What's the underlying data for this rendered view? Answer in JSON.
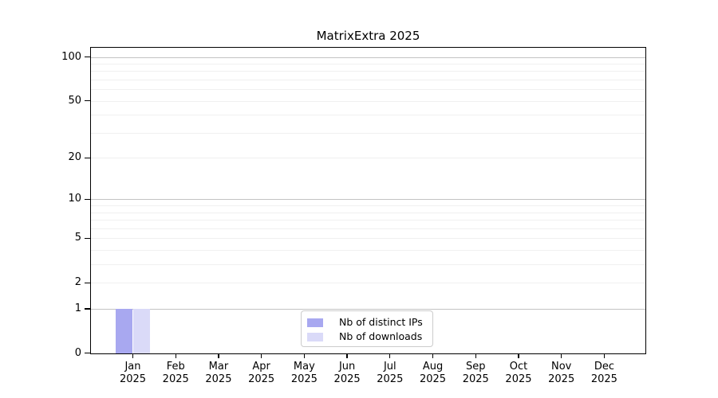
{
  "title": "MatrixExtra 2025",
  "colors": {
    "distinct_ips": "#a8a8f0",
    "downloads": "#dadaf8",
    "grid_major": "#c3c3c3",
    "grid_minor": "#f0f0f0",
    "spine": "#000000",
    "legend_border": "#cccccc",
    "background": "#ffffff",
    "text": "#000000"
  },
  "chart_data": {
    "type": "bar",
    "title": "MatrixExtra 2025",
    "categories": [
      "Jan",
      "Feb",
      "Mar",
      "Apr",
      "May",
      "Jun",
      "Jul",
      "Aug",
      "Sep",
      "Oct",
      "Nov",
      "Dec"
    ],
    "category_year": "2025",
    "series": [
      {
        "name": "Nb of distinct IPs",
        "color": "#a8a8f0",
        "values": [
          1,
          0,
          0,
          0,
          0,
          0,
          0,
          0,
          0,
          0,
          0,
          0
        ]
      },
      {
        "name": "Nb of downloads",
        "color": "#dadaf8",
        "values": [
          1,
          0,
          0,
          0,
          0,
          0,
          0,
          0,
          0,
          0,
          0,
          0
        ]
      }
    ],
    "y_axis": {
      "scale": "log1p",
      "ticks": [
        0,
        1,
        2,
        5,
        10,
        20,
        50,
        100
      ],
      "tick_labels": [
        "0",
        "1",
        "2",
        "5",
        "10",
        "20",
        "50",
        "100"
      ],
      "major_gridlines": [
        1,
        10,
        100
      ],
      "minor_gridlines": [
        2,
        3,
        4,
        5,
        6,
        7,
        8,
        9,
        20,
        30,
        40,
        50,
        60,
        70,
        80,
        90
      ],
      "ylim": [
        0,
        116
      ],
      "grid": true
    },
    "x_axis": {
      "tick_label_format": "Month over Year, two lines"
    },
    "legend": {
      "position": "lower center",
      "items": [
        "Nb of distinct IPs",
        "Nb of downloads"
      ]
    }
  }
}
